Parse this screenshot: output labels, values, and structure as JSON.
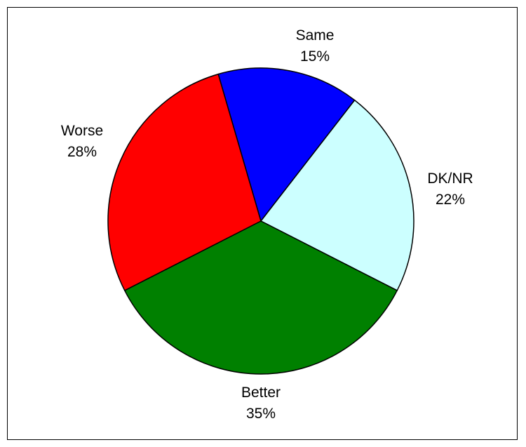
{
  "chart_data": {
    "type": "pie",
    "title": "",
    "start": "clockwise from top",
    "slices": [
      {
        "label": "Same",
        "value": 15,
        "display": "15%",
        "color": "#0000ff"
      },
      {
        "label": "DK/NR",
        "value": 22,
        "display": "22%",
        "color": "#ccffff"
      },
      {
        "label": "Better",
        "value": 35,
        "display": "35%",
        "color": "#008000"
      },
      {
        "label": "Worse",
        "value": 28,
        "display": "28%",
        "color": "#ff0000"
      }
    ],
    "legend": "none",
    "outline_color": "#000000"
  }
}
